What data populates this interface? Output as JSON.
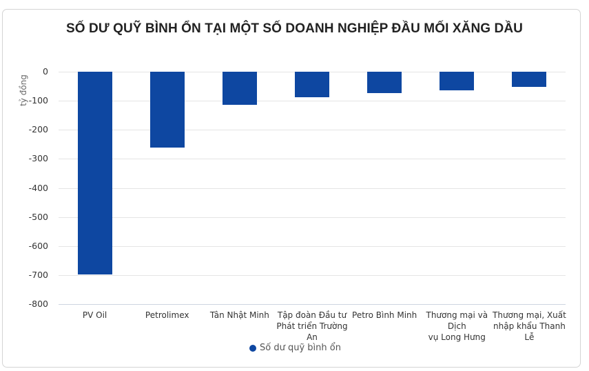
{
  "title": "SỐ DƯ QUỸ BÌNH ỔN TẠI MỘT SỐ DOANH NGHIỆP ĐẦU MỐI XĂNG DẦU",
  "y_axis_label": "tỷ đồng",
  "y_ticks": [
    "0",
    "-100",
    "-200",
    "-300",
    "-400",
    "-500",
    "-600",
    "-700",
    "-800"
  ],
  "categories": [
    [
      "PV Oil"
    ],
    [
      "Petrolimex"
    ],
    [
      "Tân Nhật Minh"
    ],
    [
      "Tập đoàn Đầu tư",
      "Phát triển Trường An"
    ],
    [
      "Petro Bình Minh"
    ],
    [
      "Thương mại và Dịch",
      "vụ Long Hưng"
    ],
    [
      "Thương mại, Xuất",
      "nhập khẩu Thanh Lễ"
    ]
  ],
  "legend": {
    "label": "Số dư quỹ bình ổn",
    "color": "#0e47a1"
  },
  "chart_data": {
    "type": "bar",
    "title": "SỐ DƯ QUỸ BÌNH ỔN TẠI MỘT SỐ DOANH NGHIỆP ĐẦU MỐI XĂNG DẦU",
    "xlabel": "",
    "ylabel": "tỷ đồng",
    "ylim": [
      -800,
      0
    ],
    "yticks": [
      0,
      -100,
      -200,
      -300,
      -400,
      -500,
      -600,
      -700,
      -800
    ],
    "grid": true,
    "legend_position": "bottom",
    "categories": [
      "PV Oil",
      "Petrolimex",
      "Tân Nhật Minh",
      "Tập đoàn Đầu tư Phát triển Trường An",
      "Petro Bình Minh",
      "Thương mại và Dịch vụ Long Hưng",
      "Thương mại, Xuất nhập khẩu Thanh Lễ"
    ],
    "series": [
      {
        "name": "Số dư quỹ bình ổn",
        "color": "#0e47a1",
        "values": [
          -698,
          -260,
          -114,
          -88,
          -73,
          -64,
          -52
        ]
      }
    ]
  }
}
